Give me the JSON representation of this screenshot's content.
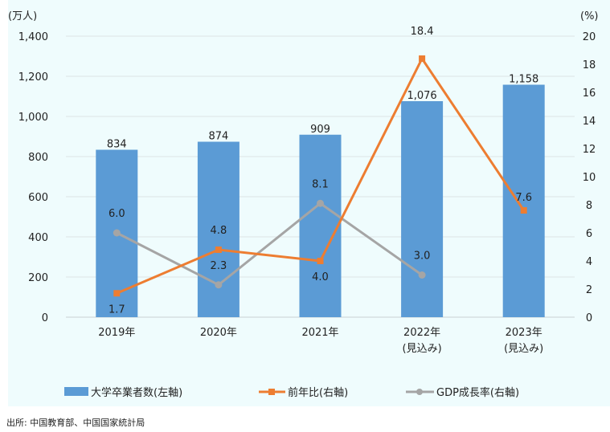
{
  "chart_data": {
    "type": "bar+line",
    "categories": [
      "2019年",
      "2020年",
      "2021年",
      "2022年\n(見込み)",
      "2023年\n(見込み)"
    ],
    "left_axis": {
      "unit_label": "(万人)",
      "range": [
        0,
        1400
      ],
      "ticks": [
        "0",
        "200",
        "400",
        "600",
        "800",
        "1,000",
        "1,200",
        "1,400"
      ]
    },
    "right_axis": {
      "unit_label": "(%)",
      "range": [
        0,
        20
      ],
      "ticks": [
        "0",
        "2",
        "4",
        "6",
        "8",
        "10",
        "12",
        "14",
        "16",
        "18",
        "20"
      ]
    },
    "grid": true,
    "legend_position": "bottom",
    "series": [
      {
        "name": "大学卒業者数(左軸)",
        "type": "bar",
        "axis": "left",
        "color": "#5b9bd5",
        "values": [
          834,
          874,
          909,
          1076,
          1158
        ],
        "labels": [
          "834",
          "874",
          "909",
          "1,076",
          "1,158"
        ]
      },
      {
        "name": "前年比(右軸)",
        "type": "line",
        "axis": "right",
        "color": "#ed7d31",
        "marker": "square",
        "values": [
          1.7,
          4.8,
          4.0,
          18.4,
          7.6
        ],
        "labels": [
          "1.7",
          "4.8",
          "4.0",
          "18.4",
          "7.6"
        ]
      },
      {
        "name": "GDP成長率(右軸)",
        "type": "line",
        "axis": "right",
        "color": "#a5a5a5",
        "marker": "diamond",
        "values": [
          6.0,
          2.3,
          8.1,
          3.0,
          null
        ],
        "labels": [
          "6.0",
          "2.3",
          "8.1",
          "3.0",
          null
        ]
      }
    ]
  },
  "source": "出所: 中国教育部、中国国家統計局"
}
